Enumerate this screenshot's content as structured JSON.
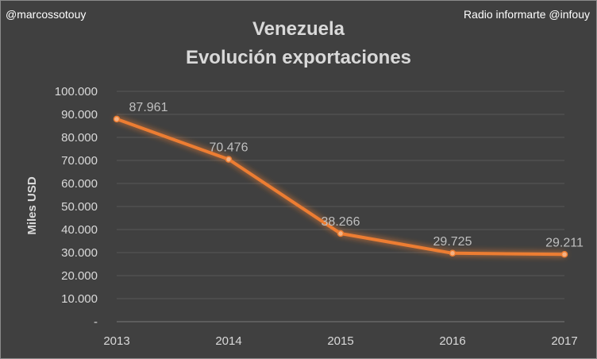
{
  "credits": {
    "left": "@marcossotouy",
    "right": "Radio informarte @infouy"
  },
  "chart_data": {
    "type": "line",
    "title": "Venezuela",
    "subtitle": "Evolución exportaciones",
    "xlabel": "",
    "ylabel": "Miles USD",
    "ylim": [
      0,
      100000
    ],
    "yticks": [
      "-",
      "10.000",
      "20.000",
      "30.000",
      "40.000",
      "50.000",
      "60.000",
      "70.000",
      "80.000",
      "90.000",
      "100.000"
    ],
    "categories": [
      "2013",
      "2014",
      "2015",
      "2016",
      "2017"
    ],
    "series": [
      {
        "values": [
          87961,
          70476,
          38266,
          29725,
          29211
        ],
        "labels": [
          "87.961",
          "70.476",
          "38.266",
          "29.725",
          "29.211"
        ],
        "color": "#ed7d31"
      }
    ],
    "grid": true,
    "legend": "none"
  }
}
